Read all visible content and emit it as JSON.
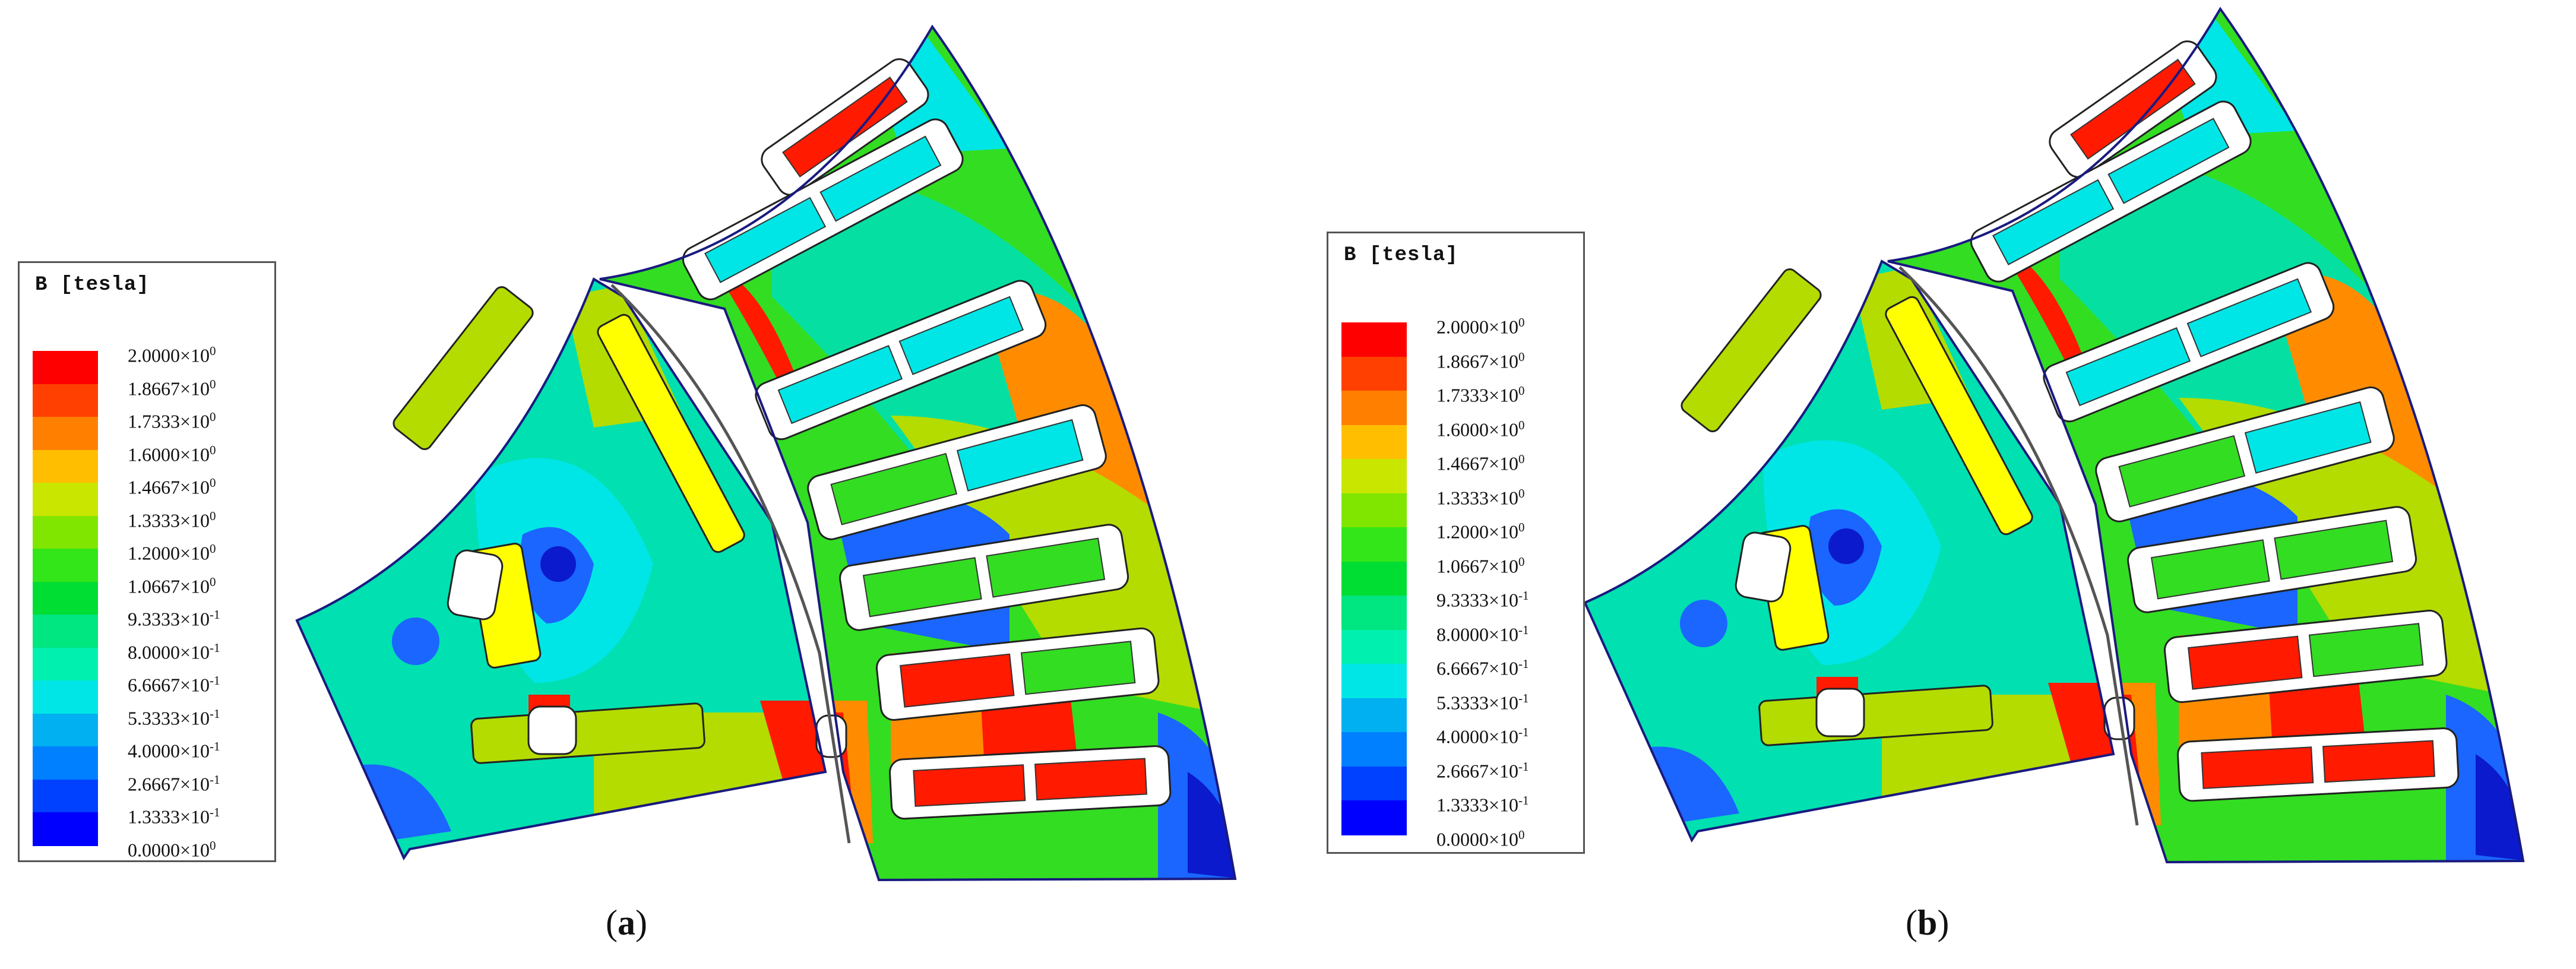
{
  "legend": {
    "title": "B [tesla]",
    "unit": "tesla",
    "levels": [
      {
        "label": "2.0000×10",
        "exp": "0",
        "color": "#ff0000"
      },
      {
        "label": "1.8667×10",
        "exp": "0",
        "color": "#ff4000"
      },
      {
        "label": "1.7333×10",
        "exp": "0",
        "color": "#ff8000"
      },
      {
        "label": "1.6000×10",
        "exp": "0",
        "color": "#ffbf00"
      },
      {
        "label": "1.4667×10",
        "exp": "0",
        "color": "#c8e600"
      },
      {
        "label": "1.3333×10",
        "exp": "0",
        "color": "#80e600"
      },
      {
        "label": "1.2000×10",
        "exp": "0",
        "color": "#33e61a"
      },
      {
        "label": "1.0667×10",
        "exp": "0",
        "color": "#00dd33"
      },
      {
        "label": "9.3333×10",
        "exp": "-1",
        "color": "#00e680"
      },
      {
        "label": "8.0000×10",
        "exp": "-1",
        "color": "#00f0b0"
      },
      {
        "label": "6.6667×10",
        "exp": "-1",
        "color": "#00e6e6"
      },
      {
        "label": "5.3333×10",
        "exp": "-1",
        "color": "#00b0f0"
      },
      {
        "label": "4.0000×10",
        "exp": "-1",
        "color": "#0080ff"
      },
      {
        "label": "2.6667×10",
        "exp": "-1",
        "color": "#0040ff"
      },
      {
        "label": "1.3333×10",
        "exp": "-1",
        "color": "#0000ff"
      },
      {
        "label": "0.0000×10",
        "exp": "0",
        "color": "#0000ff"
      }
    ]
  },
  "panels": [
    {
      "id": "a",
      "caption_open": "(",
      "caption_letter": "a",
      "caption_close": ")"
    },
    {
      "id": "b",
      "caption_open": "(",
      "caption_letter": "b",
      "caption_close": ")"
    }
  ],
  "colors": {
    "red": "#ff1a00",
    "orange": "#ff8c00",
    "yellow": "#ffff00",
    "yellowgreen": "#b4dc00",
    "green": "#33dd22",
    "cyan": "#00e6e6",
    "teal": "#00e0b0",
    "blue": "#1a66ff",
    "darkblue": "#0a1acc",
    "slot_bg": "#ffffff",
    "outline": "#1a1a80"
  }
}
